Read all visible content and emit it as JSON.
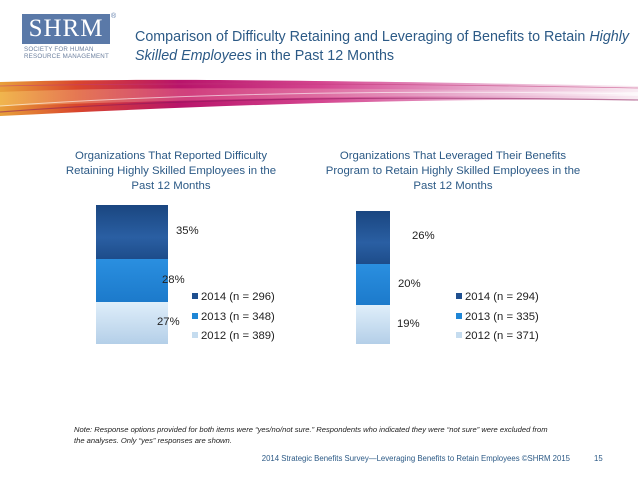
{
  "logo": {
    "mark": "SHRM",
    "registered": "®",
    "subtitle_lines": [
      "SOCIETY FOR HUMAN",
      "RESOURCE MANAGEMENT"
    ]
  },
  "slide_title": {
    "part1": "Comparison of Difficulty Retaining and Leveraging of Benefits to Retain ",
    "emph1": "Highly Skilled Employees",
    "part2": " in the Past 12 Months"
  },
  "colors": {
    "title": "#2c5a86",
    "bar_2014": "#1f4f8f",
    "bar_2013": "#1f86d6",
    "bar_2012": "#c5dcef"
  },
  "chart_data": [
    {
      "type": "bar",
      "stacked": true,
      "title": "Organizations That Reported Difficulty Retaining Highly Skilled Employees in the Past 12 Months",
      "series": [
        {
          "name": "2014 (n = 296)",
          "values": [
            35
          ]
        },
        {
          "name": "2013 (n = 348)",
          "values": [
            28
          ]
        },
        {
          "name": "2012 (n = 389)",
          "values": [
            27
          ]
        }
      ],
      "data_labels": [
        "35%",
        "28%",
        "27%"
      ],
      "legend_position": "right"
    },
    {
      "type": "bar",
      "stacked": true,
      "title": "Organizations That Leveraged Their Benefits Program to Retain Highly Skilled Employees in the Past 12 Months",
      "series": [
        {
          "name": "2014 (n = 294)",
          "values": [
            26
          ]
        },
        {
          "name": "2013 (n = 335)",
          "values": [
            20
          ]
        },
        {
          "name": "2012 (n = 371)",
          "values": [
            19
          ]
        }
      ],
      "data_labels": [
        "26%",
        "20%",
        "19%"
      ],
      "legend_position": "right"
    }
  ],
  "note": "Note: Response options provided for both items were “yes/no/not sure.” Respondents who indicated they were “not sure” were excluded from the analyses. Only “yes” responses are shown.",
  "footer": "2014 Strategic Benefits Survey—Leveraging Benefits to Retain Employees ©SHRM 2015",
  "page_number": "15"
}
